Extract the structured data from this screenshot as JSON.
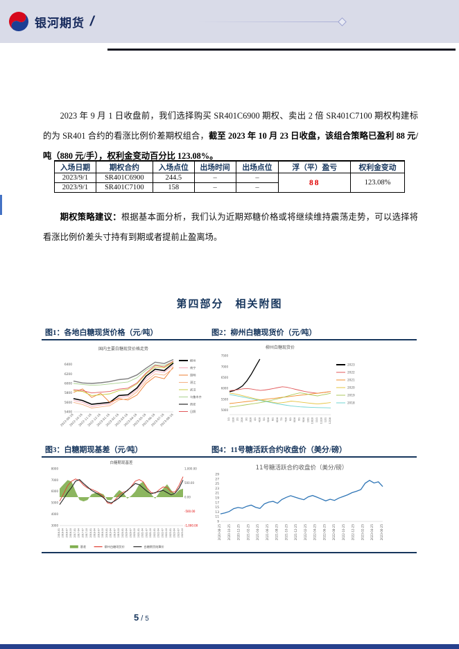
{
  "header": {
    "brand": "银河期货",
    "slash": "/"
  },
  "paragraphs": {
    "p1_normal": "2023 年 9 月 1 日收盘前，我们选择购买 SR401C6900 期权、卖出 2 倍 SR401C7100 期权构建标的为 SR401 合约的看涨比例价差期权组合，",
    "p1_bold": "截至 2023 年 10 月 23 日收盘，该组合策略已盈利 88 元/吨（880 元/手），权利金变动百分比 123.08%。",
    "p2_label": "期权策略建议：",
    "p2_text": "根据基本面分析，我们认为近期郑糖价格或将继续维持震荡走势，可以选择将看涨比例价差头寸持有到期或者提前止盈离场。"
  },
  "table": {
    "headers": [
      "入场日期",
      "期权合约",
      "入场点位",
      "出场时间",
      "出场点位",
      "浮（平）盈亏",
      "权利金变动"
    ],
    "rows": [
      [
        "2023/9/1",
        "SR401C6900",
        "244.5",
        "–",
        "–"
      ],
      [
        "2023/9/1",
        "SR401C7100",
        "158",
        "–",
        "–"
      ]
    ],
    "pnl": "88",
    "premium_change": "123.08%",
    "pnl_color": "#e00000"
  },
  "section_title": "第四部分　相关附图",
  "figures": {
    "cap1": "图1：各地白糖现货价格（元/吨）",
    "cap2": "图2：柳州白糖现货价（元/吨）",
    "cap3": "图3：白糖期现基差（元/吨）",
    "cap4": "图4：11号糖活跃合约收盘价（美分/磅）"
  },
  "footer": {
    "current": "5",
    "sep": "/",
    "total": "5"
  },
  "chart_data": [
    {
      "type": "line",
      "title": "国内主要白糖现货价格走势",
      "x_labels": [
        "2022-09-16",
        "2022-10-16",
        "2022-11-16",
        "2022-12-16",
        "2023-01-16",
        "2023-02-16",
        "2023-03-16",
        "2023-04-16",
        "2023-05-16",
        "2023-06-16",
        "2023-07-16",
        "2023-08-16"
      ],
      "ylim": [
        5400,
        6600
      ],
      "yticks": [
        5400,
        5600,
        5800,
        6000,
        6200,
        6400
      ],
      "legend_position": "right",
      "series": [
        {
          "name": "柳州",
          "color": "#000000",
          "w": 1.6,
          "values": [
            5680,
            5640,
            5560,
            5580,
            5600,
            5745,
            5760,
            5905,
            6155,
            6300,
            6270,
            6430
          ]
        },
        {
          "name": "南宁",
          "color": "#f4a7b9",
          "w": 0.9,
          "values": [
            5640,
            5600,
            5515,
            5545,
            5565,
            5705,
            5725,
            5865,
            6105,
            6255,
            6235,
            6385
          ]
        },
        {
          "name": "昆明",
          "color": "#ed7d31",
          "w": 0.9,
          "values": [
            5810,
            5885,
            5705,
            5790,
            5600,
            5680,
            5650,
            5755,
            6000,
            6145,
            6100,
            6350
          ]
        },
        {
          "name": "湛江",
          "color": "#f4b183",
          "w": 0.9,
          "values": [
            5600,
            5555,
            5480,
            5505,
            5530,
            5650,
            5680,
            5825,
            6050,
            6200,
            6175,
            6320
          ]
        },
        {
          "name": "武汉",
          "color": "#c9cc3f",
          "w": 0.9,
          "values": [
            5845,
            5830,
            5745,
            5760,
            5780,
            5850,
            5875,
            5990,
            6200,
            6345,
            6330,
            6450
          ]
        },
        {
          "name": "乌鲁木齐",
          "color": "#a9d18e",
          "w": 0.9,
          "values": [
            6000,
            5980,
            5960,
            5970,
            5990,
            6010,
            6030,
            6120,
            6280,
            6395,
            6380,
            6460
          ]
        },
        {
          "name": "西安",
          "color": "#7f7f7f",
          "w": 1.4,
          "values": [
            6050,
            6010,
            6000,
            6015,
            6040,
            6080,
            6100,
            6180,
            6320,
            6450,
            6420,
            6505
          ]
        },
        {
          "name": "日照",
          "color": "#e15759",
          "w": 0.9,
          "values": [
            5870,
            5850,
            5800,
            5815,
            5830,
            5880,
            5900,
            6010,
            6220,
            6380,
            6350,
            6470
          ]
        }
      ]
    },
    {
      "type": "line",
      "title": "柳州白糖现货价",
      "x_labels": [
        "1/1",
        "1/16",
        "2/1",
        "2/16",
        "3/1",
        "3/16",
        "4/1",
        "4/16",
        "5/1",
        "5/16",
        "6/1",
        "6/16",
        "7/1",
        "7/16",
        "8/1",
        "8/16",
        "9/1",
        "9/16",
        "10/1",
        "10/16",
        "11/1",
        "11/16",
        "12/1",
        "12/16"
      ],
      "ylim": [
        4800,
        7600
      ],
      "yticks": [
        5000,
        5500,
        6000,
        6500,
        7000,
        7500
      ],
      "legend_position": "right",
      "series": [
        {
          "name": "2023",
          "color": "#000000",
          "w": 1.3,
          "span": 0.3,
          "values": [
            5850,
            5900,
            5990,
            6120,
            6350,
            6650,
            7000,
            7350
          ]
        },
        {
          "name": "2022",
          "color": "#e15759",
          "w": 0.9,
          "values": [
            5900,
            5920,
            5950,
            5985,
            6000,
            5975,
            5940,
            5910,
            5930,
            5960,
            6000,
            6040,
            6080,
            6060,
            6010,
            5960,
            5915,
            5870,
            5830,
            5805,
            5780,
            5810,
            5835,
            5860
          ]
        },
        {
          "name": "2021",
          "color": "#f28e2b",
          "w": 0.9,
          "values": [
            5310,
            5330,
            5355,
            5380,
            5405,
            5425,
            5450,
            5475,
            5500,
            5525,
            5545,
            5570,
            5595,
            5615,
            5640,
            5665,
            5690,
            5710,
            5735,
            5760,
            5780,
            5805,
            5830,
            5855
          ]
        },
        {
          "name": "2020",
          "color": "#e6c440",
          "w": 0.9,
          "values": [
            5790,
            5760,
            5720,
            5670,
            5620,
            5570,
            5520,
            5480,
            5440,
            5400,
            5360,
            5330,
            5350,
            5380,
            5420,
            5400,
            5380,
            5355,
            5330,
            5310,
            5290,
            5310,
            5330,
            5355
          ]
        },
        {
          "name": "2019",
          "color": "#aec95c",
          "w": 0.9,
          "values": [
            5150,
            5170,
            5200,
            5230,
            5260,
            5290,
            5320,
            5350,
            5390,
            5430,
            5480,
            5530,
            5580,
            5640,
            5700,
            5750,
            5800,
            5770,
            5730,
            5690,
            5660,
            5700,
            5740,
            5780
          ]
        },
        {
          "name": "2018",
          "color": "#6fd4d1",
          "w": 0.9,
          "values": [
            5720,
            5690,
            5650,
            5610,
            5570,
            5530,
            5490,
            5450,
            5410,
            5370,
            5330,
            5290,
            5260,
            5230,
            5200,
            5180,
            5160,
            5150,
            5140,
            5130,
            5125,
            5120,
            5115,
            5110
          ]
        }
      ]
    },
    {
      "type": "combo",
      "title": "白糖期现基差",
      "x_labels": [
        "2016-01",
        "2016-04",
        "2016-07",
        "2016-10",
        "2017-01",
        "2017-04",
        "2017-07",
        "2017-10",
        "2018-01",
        "2018-04",
        "2018-07",
        "2018-10",
        "2019-01",
        "2019-04",
        "2019-07",
        "2019-10",
        "2020-01",
        "2020-04",
        "2020-07",
        "2020-10",
        "2021-01",
        "2021-04",
        "2021-07",
        "2021-10",
        "2022-01",
        "2022-04",
        "2022-07",
        "2022-10",
        "2023-01",
        "2023-04",
        "2023-07",
        "2023-10"
      ],
      "ylim": [
        3000,
        8000
      ],
      "yticks": [
        3000,
        4000,
        5000,
        6000,
        7000,
        8000
      ],
      "ylim2": [
        -1000,
        1000
      ],
      "yticks2": [
        1000,
        500,
        0,
        -500,
        -1000
      ],
      "legend_position": "bottom",
      "series": [
        {
          "name": "基差",
          "color": "#7fae4e",
          "area": true,
          "axis": "right",
          "values": [
            300,
            450,
            600,
            550,
            200,
            -100,
            -150,
            -100,
            100,
            150,
            150,
            100,
            -100,
            -100,
            100,
            250,
            150,
            -50,
            50,
            200,
            450,
            550,
            300,
            100,
            -50,
            150,
            300,
            450,
            250,
            100,
            250,
            300
          ]
        },
        {
          "name": "柳州白糖现货价",
          "color": "#e03c31",
          "w": 0.9,
          "values": [
            5150,
            5800,
            6500,
            6900,
            7100,
            6950,
            6550,
            6300,
            6200,
            6050,
            5850,
            5550,
            5000,
            4900,
            5300,
            5700,
            5950,
            6050,
            6450,
            6900,
            7050,
            6850,
            6300,
            5900,
            5850,
            6150,
            6400,
            6350,
            5950,
            5950,
            6550,
            7300
          ]
        },
        {
          "name": "白糖期货结算价",
          "color": "#262626",
          "w": 1.1,
          "values": [
            4850,
            5350,
            5900,
            6350,
            6900,
            7050,
            6700,
            6400,
            6100,
            5900,
            5700,
            5450,
            5100,
            5000,
            5200,
            5450,
            5800,
            6100,
            6400,
            6700,
            6600,
            6300,
            6000,
            5800,
            5900,
            6000,
            6100,
            5900,
            5700,
            5850,
            6300,
            7000
          ]
        }
      ]
    },
    {
      "type": "line",
      "title": "11号糖活跃合约收盘价（美分/磅）",
      "x_labels": [
        "2020-08-25",
        "2020-10-25",
        "2020-12-25",
        "2021-02-25",
        "2021-04-25",
        "2021-06-25",
        "2021-08-25",
        "2021-10-25",
        "2021-12-25",
        "2022-02-25",
        "2022-04-25",
        "2022-06-25",
        "2022-08-25",
        "2022-10-25",
        "2022-12-25",
        "2023-02-25",
        "2023-04-25",
        "2023-06-25"
      ],
      "ylim": [
        9,
        29
      ],
      "yticks": [
        9,
        11,
        13,
        15,
        17,
        19,
        21,
        23,
        25,
        27,
        29
      ],
      "series": [
        {
          "name": "11号糖",
          "color": "#2e75b6",
          "w": 1.3,
          "values": [
            12.2,
            12.6,
            13.2,
            14.4,
            14.9,
            14.6,
            15.4,
            15.9,
            15.0,
            14.5,
            16.4,
            17.2,
            17.5,
            16.7,
            18.3,
            19.2,
            19.9,
            19.3,
            18.7,
            18.2,
            19.4,
            20.0,
            19.3,
            18.5,
            17.7,
            18.4,
            17.9,
            18.9,
            19.6,
            20.3,
            21.2,
            21.8,
            22.5,
            25.2,
            26.4,
            25.3,
            25.8,
            23.8
          ]
        }
      ]
    }
  ]
}
